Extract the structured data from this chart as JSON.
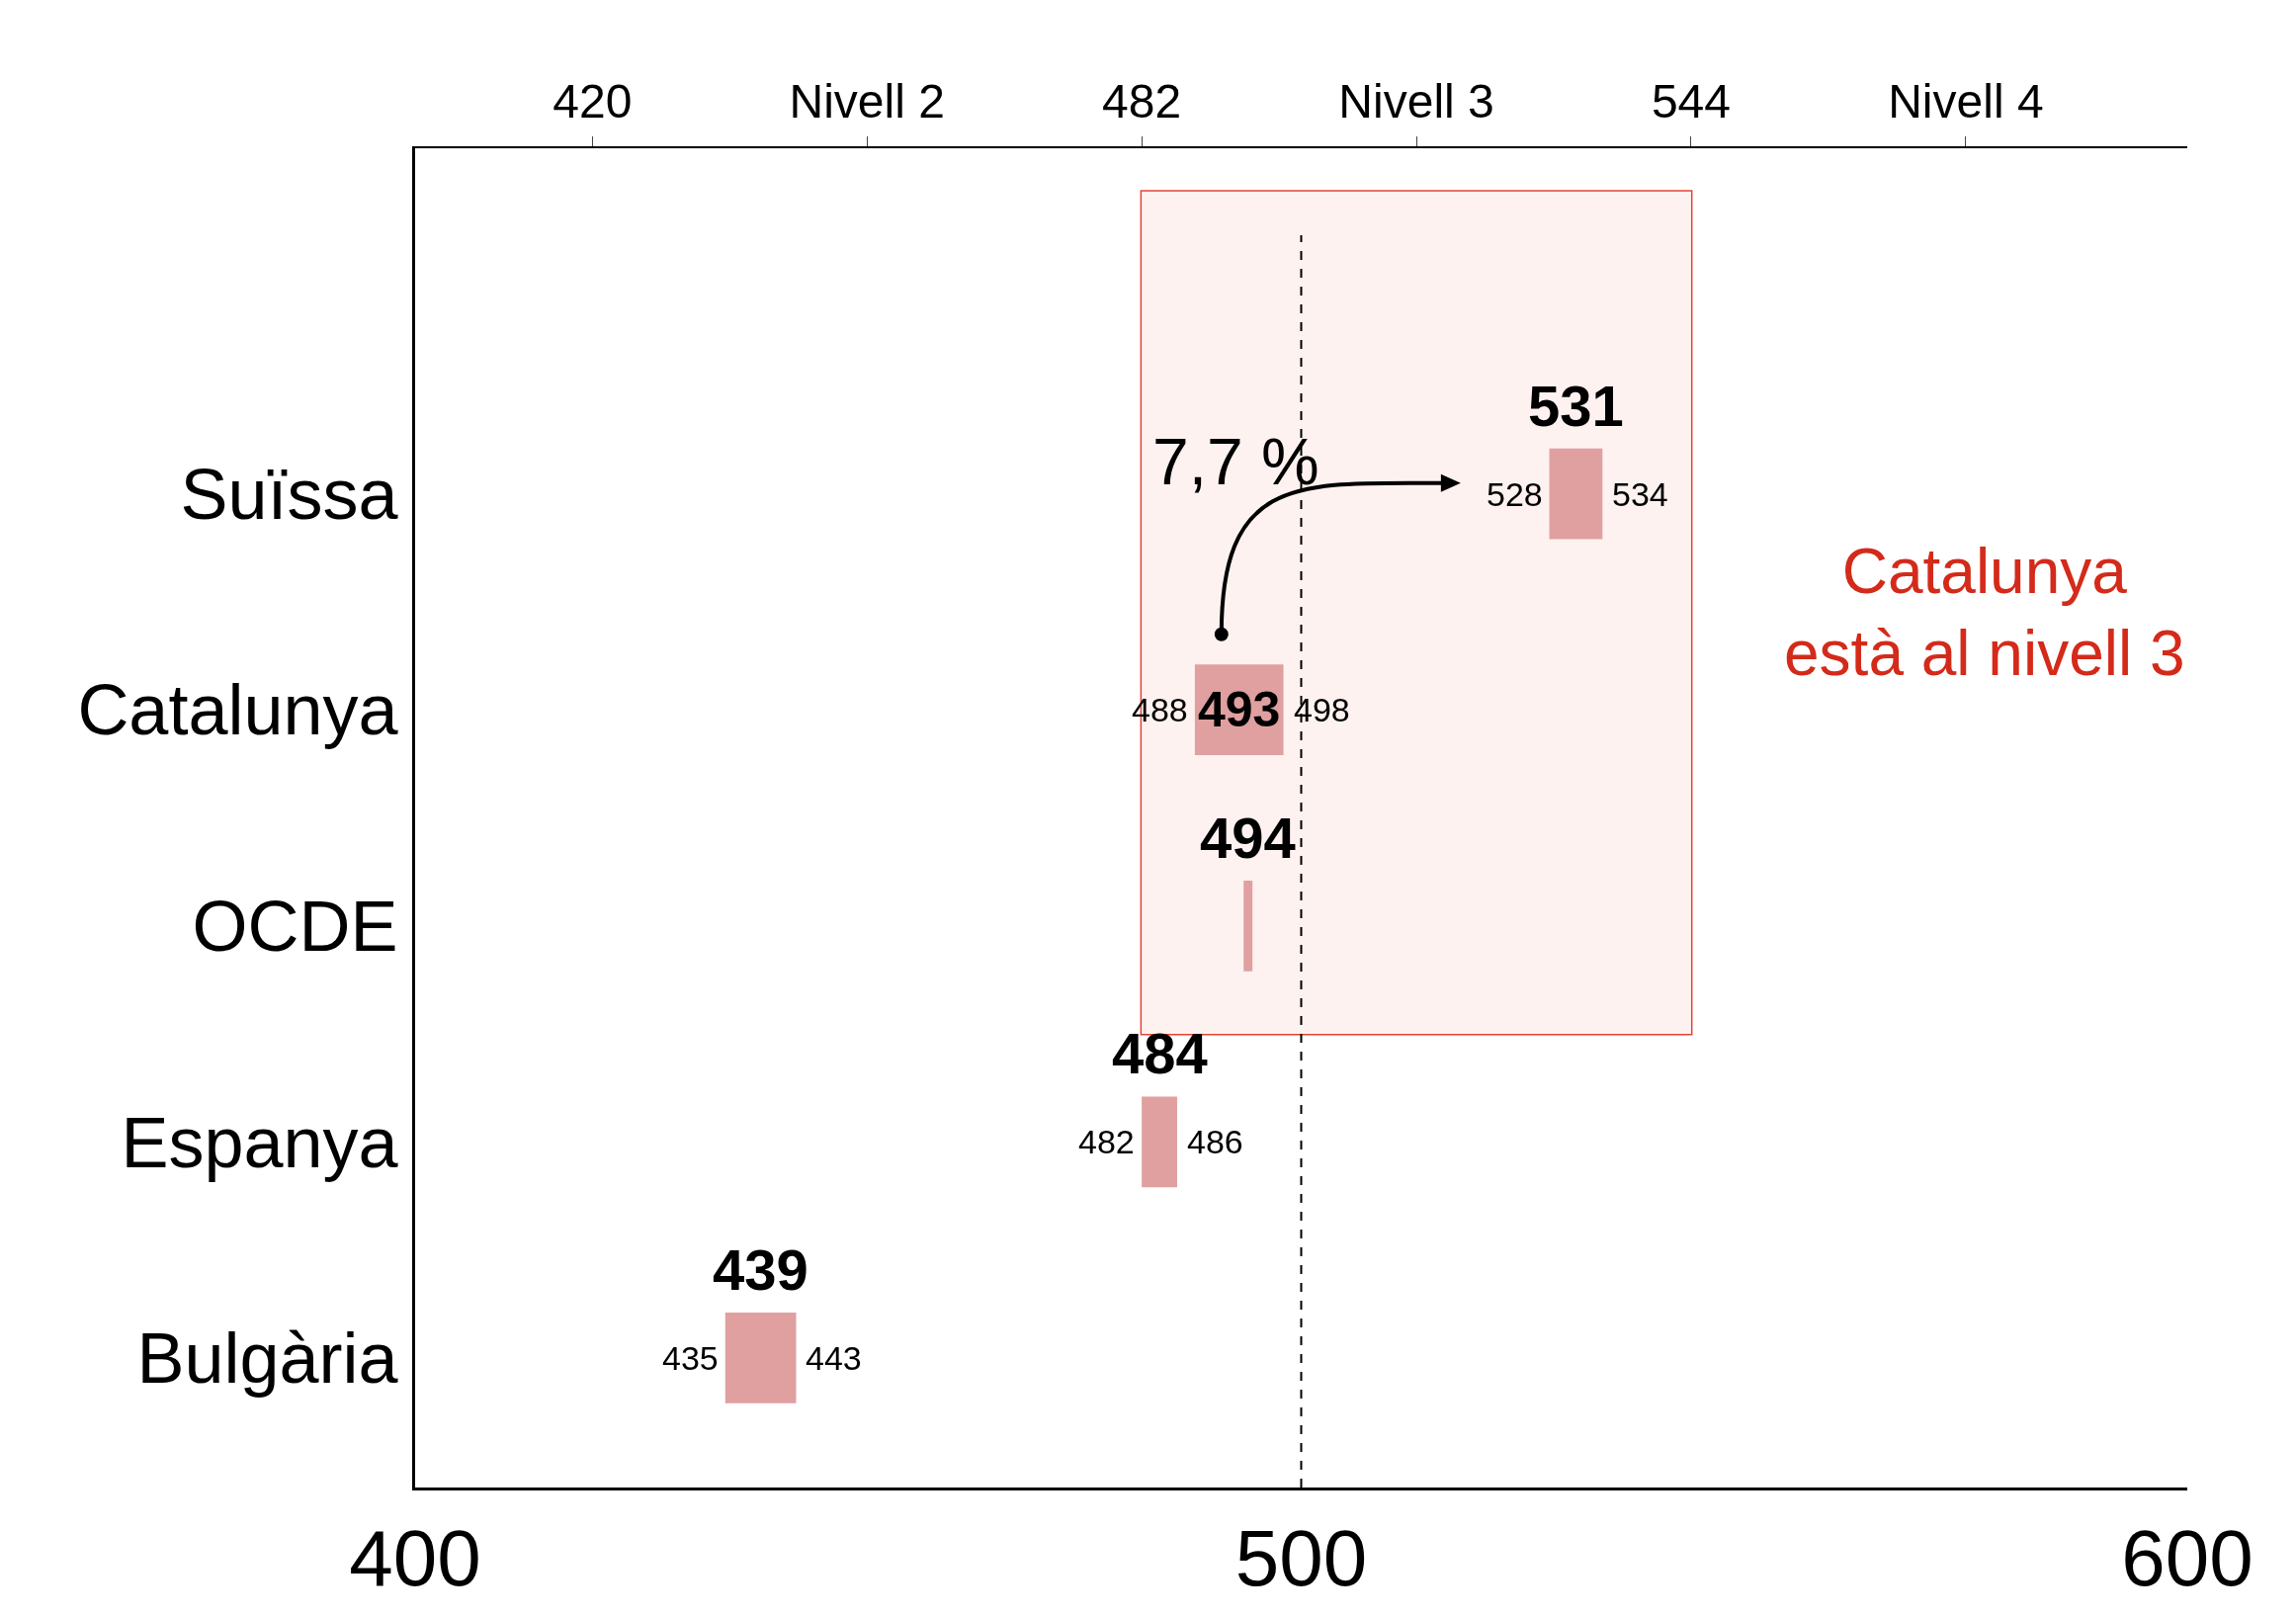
{
  "chart_data": {
    "type": "bar",
    "orientation": "horizontal",
    "categories": [
      "Suïssa",
      "Catalunya",
      "OCDE",
      "Espanya",
      "Bulgària"
    ],
    "base": [
      528,
      488,
      493.5,
      482,
      435
    ],
    "values": [
      6,
      10,
      1,
      4,
      8
    ],
    "color": "#e0a0a0",
    "xlim": [
      400,
      600
    ],
    "xticks": [
      400,
      500,
      600
    ],
    "x2lim": [
      400,
      600
    ],
    "x2ticks": [
      420,
      {
        "value": 451,
        "label": "Nivell 2"
      },
      482,
      {
        "value": 513,
        "label": "Nivell 3"
      },
      544,
      {
        "value": 575,
        "label": "Nivell 4"
      }
    ],
    "ref_lines": [
      {
        "axis": "x",
        "value": 500,
        "color": "#000000",
        "line_style": "dashed"
      }
    ],
    "bands": [
      {
        "axis": "x",
        "from": 482,
        "to": 544,
        "color": "#e03020"
      }
    ],
    "annotations": [
      "531",
      "493",
      "494",
      "484",
      "439",
      {
        "text": "528",
        "x": 528,
        "y": "Suïssa"
      },
      {
        "text": "534",
        "x": 534,
        "y": "Suïssa"
      },
      {
        "text": "488",
        "x": 488,
        "y": "Catalunya"
      },
      {
        "text": "498",
        "x": 498,
        "y": "Catalunya"
      },
      {
        "text": "482",
        "x": 482,
        "y": "Espanya"
      },
      {
        "text": "486",
        "x": 486,
        "y": "Espanya"
      },
      {
        "text": "435",
        "x": 435,
        "y": "Bulgària"
      },
      {
        "text": "443",
        "x": 443,
        "y": "Bulgària"
      },
      "7,7 %",
      "Catalunya està al nivell 3"
    ],
    "grid": false,
    "legend": false
  }
}
